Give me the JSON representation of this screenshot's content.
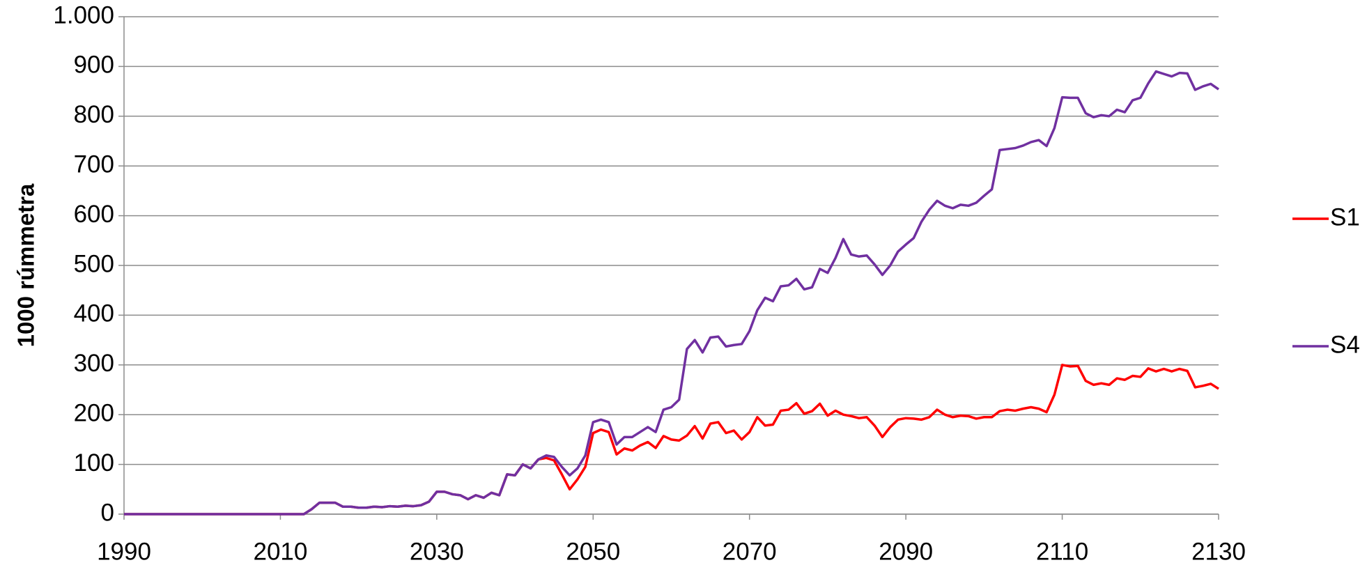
{
  "chart_data": {
    "type": "line",
    "y_label": "1000 rúmmetra",
    "x": [
      1990,
      1991,
      1992,
      1993,
      1994,
      1995,
      1996,
      1997,
      1998,
      1999,
      2000,
      2001,
      2002,
      2003,
      2004,
      2005,
      2006,
      2007,
      2008,
      2009,
      2010,
      2011,
      2012,
      2013,
      2014,
      2015,
      2016,
      2017,
      2018,
      2019,
      2020,
      2021,
      2022,
      2023,
      2024,
      2025,
      2026,
      2027,
      2028,
      2029,
      2030,
      2031,
      2032,
      2033,
      2034,
      2035,
      2036,
      2037,
      2038,
      2039,
      2040,
      2041,
      2042,
      2043,
      2044,
      2045,
      2046,
      2047,
      2048,
      2049,
      2050,
      2051,
      2052,
      2053,
      2054,
      2055,
      2056,
      2057,
      2058,
      2059,
      2060,
      2061,
      2062,
      2063,
      2064,
      2065,
      2066,
      2067,
      2068,
      2069,
      2070,
      2071,
      2072,
      2073,
      2074,
      2075,
      2076,
      2077,
      2078,
      2079,
      2080,
      2081,
      2082,
      2083,
      2084,
      2085,
      2086,
      2087,
      2088,
      2089,
      2090,
      2091,
      2092,
      2093,
      2094,
      2095,
      2096,
      2097,
      2098,
      2099,
      2100,
      2101,
      2102,
      2103,
      2104,
      2105,
      2106,
      2107,
      2108,
      2109,
      2110,
      2111,
      2112,
      2113,
      2114,
      2115,
      2116,
      2117,
      2118,
      2119,
      2120,
      2121,
      2122,
      2123,
      2124,
      2125,
      2126,
      2127,
      2128,
      2129,
      2130
    ],
    "series": [
      {
        "name": "S1",
        "color": "#ff0000",
        "values": [
          0,
          0,
          0,
          0,
          0,
          0,
          0,
          0,
          0,
          0,
          0,
          0,
          0,
          0,
          0,
          0,
          0,
          0,
          0,
          0,
          0,
          0,
          0,
          0,
          10,
          23,
          23,
          23,
          15,
          15,
          13,
          13,
          15,
          14,
          16,
          15,
          17,
          16,
          18,
          25,
          45,
          45,
          40,
          38,
          30,
          38,
          33,
          43,
          38,
          80,
          78,
          100,
          92,
          110,
          113,
          108,
          80,
          50,
          70,
          95,
          163,
          170,
          165,
          120,
          132,
          128,
          138,
          145,
          133,
          157,
          150,
          148,
          158,
          177,
          152,
          182,
          185,
          163,
          168,
          150,
          165,
          195,
          178,
          180,
          208,
          210,
          223,
          202,
          207,
          222,
          198,
          208,
          200,
          197,
          193,
          195,
          178,
          155,
          175,
          190,
          193,
          192,
          190,
          195,
          210,
          200,
          195,
          198,
          197,
          192,
          195,
          195,
          207,
          210,
          208,
          212,
          215,
          212,
          205,
          240,
          300,
          297,
          298,
          268,
          260,
          263,
          260,
          273,
          270,
          278,
          276,
          293,
          287,
          292,
          287,
          292,
          288,
          255,
          258,
          262,
          252
        ]
      },
      {
        "name": "S4",
        "color": "#7030a0",
        "values": [
          0,
          0,
          0,
          0,
          0,
          0,
          0,
          0,
          0,
          0,
          0,
          0,
          0,
          0,
          0,
          0,
          0,
          0,
          0,
          0,
          0,
          0,
          0,
          0,
          10,
          23,
          23,
          23,
          15,
          15,
          13,
          13,
          15,
          14,
          16,
          15,
          17,
          16,
          18,
          25,
          45,
          45,
          40,
          38,
          30,
          38,
          33,
          43,
          38,
          80,
          78,
          100,
          92,
          110,
          118,
          115,
          95,
          78,
          92,
          118,
          185,
          190,
          185,
          140,
          155,
          155,
          165,
          175,
          165,
          210,
          215,
          230,
          332,
          350,
          325,
          355,
          357,
          337,
          340,
          342,
          368,
          410,
          435,
          428,
          458,
          460,
          473,
          452,
          456,
          493,
          485,
          515,
          553,
          522,
          518,
          520,
          502,
          481,
          500,
          528,
          542,
          555,
          588,
          612,
          630,
          620,
          615,
          622,
          620,
          626,
          640,
          653,
          732,
          734,
          736,
          741,
          748,
          752,
          740,
          776,
          838,
          837,
          837,
          806,
          798,
          802,
          800,
          813,
          808,
          832,
          837,
          866,
          890,
          885,
          880,
          887,
          886,
          853,
          860,
          865,
          854
        ]
      }
    ],
    "xlim": [
      1990,
      2130
    ],
    "xticks": [
      1990,
      2010,
      2030,
      2050,
      2070,
      2090,
      2110,
      2130
    ],
    "ylim": [
      0,
      1000
    ],
    "yticks": [
      0,
      100,
      200,
      300,
      400,
      500,
      600,
      700,
      800,
      900,
      {
        "value": 1000,
        "label": "1.000"
      }
    ],
    "grid": true,
    "legend": "right"
  }
}
